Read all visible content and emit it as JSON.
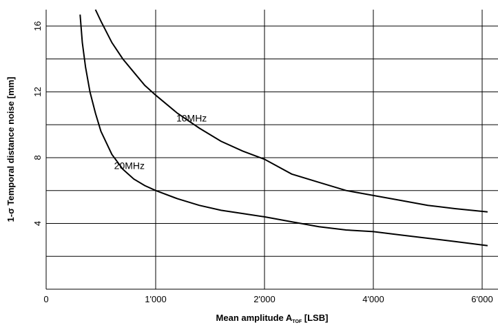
{
  "chart_data": {
    "type": "line",
    "xlabel": {
      "main": "Mean amplitude A",
      "subscript": "TOF",
      "suffix": " [LSB]"
    },
    "ylabel": "1-σ Temporal distance noise [mm]",
    "xlim": [
      0,
      6200
    ],
    "ylim": [
      0,
      17
    ],
    "x_ticks": [
      {
        "value": 0,
        "label": "0"
      },
      {
        "value": 1000,
        "label": "1'000"
      },
      {
        "value": 2000,
        "label": "2'000"
      },
      {
        "value": 4000,
        "label": "4'000"
      },
      {
        "value": 6000,
        "label": "6'000"
      }
    ],
    "x_tick_positions": [
      0,
      1000,
      2000,
      4000,
      6000
    ],
    "x_axis_note": "tick label 4'000 and 6'000 appear at grid positions 3 and 4; axis scale is non-linear as printed",
    "y_ticks": [
      {
        "value": 4,
        "label": "4"
      },
      {
        "value": 8,
        "label": "8"
      },
      {
        "value": 12,
        "label": "12"
      },
      {
        "value": 16,
        "label": "16"
      }
    ],
    "y_gridlines": [
      2,
      4,
      6,
      8,
      10,
      12,
      14,
      16
    ],
    "grid": true,
    "series": [
      {
        "name": "10MHz",
        "points": [
          [
            450,
            17.0
          ],
          [
            500,
            16.3
          ],
          [
            600,
            15.0
          ],
          [
            700,
            14.0
          ],
          [
            800,
            13.2
          ],
          [
            900,
            12.4
          ],
          [
            1000,
            11.8
          ],
          [
            1200,
            10.7
          ],
          [
            1400,
            9.8
          ],
          [
            1600,
            9.0
          ],
          [
            1800,
            8.4
          ],
          [
            2000,
            7.9
          ],
          [
            2500,
            7.0
          ],
          [
            3000,
            6.5
          ],
          [
            3500,
            6.0
          ],
          [
            4000,
            5.7
          ],
          [
            4500,
            5.4
          ],
          [
            5000,
            5.1
          ],
          [
            5500,
            4.9
          ],
          [
            6100,
            4.7
          ]
        ],
        "label_at": [
          1330,
          10.2
        ]
      },
      {
        "name": "20MHz",
        "points": [
          [
            310,
            16.7
          ],
          [
            330,
            15.0
          ],
          [
            360,
            13.5
          ],
          [
            400,
            12.0
          ],
          [
            450,
            10.7
          ],
          [
            500,
            9.6
          ],
          [
            600,
            8.2
          ],
          [
            700,
            7.3
          ],
          [
            800,
            6.7
          ],
          [
            900,
            6.3
          ],
          [
            1000,
            6.0
          ],
          [
            1200,
            5.5
          ],
          [
            1400,
            5.1
          ],
          [
            1600,
            4.8
          ],
          [
            1800,
            4.6
          ],
          [
            2000,
            4.4
          ],
          [
            2500,
            4.1
          ],
          [
            3000,
            3.8
          ],
          [
            3500,
            3.6
          ],
          [
            4000,
            3.5
          ],
          [
            4500,
            3.3
          ],
          [
            5000,
            3.1
          ],
          [
            5500,
            2.9
          ],
          [
            6100,
            2.65
          ]
        ],
        "label_at": [
          760,
          7.3
        ]
      }
    ]
  }
}
